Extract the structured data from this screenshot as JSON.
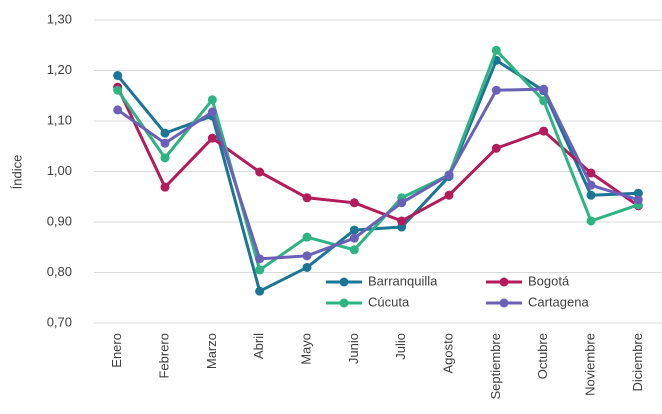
{
  "chart_data": {
    "type": "line",
    "y_label": "Índice",
    "categories": [
      "Enero",
      "Febrero",
      "Marzo",
      "Abril",
      "Mayo",
      "Junio",
      "Julio",
      "Agosto",
      "Septiembre",
      "Octubre",
      "Noviembre",
      "Diciembre"
    ],
    "series": [
      {
        "name": "Barranquilla",
        "color": "#1b7595",
        "values": [
          1.19,
          1.076,
          1.11,
          0.763,
          0.81,
          0.884,
          0.89,
          0.99,
          1.22,
          1.16,
          0.953,
          0.957
        ]
      },
      {
        "name": "Bogotá",
        "color": "#b31b5b",
        "values": [
          1.167,
          0.969,
          1.066,
          0.999,
          0.948,
          0.938,
          0.902,
          0.953,
          1.046,
          1.08,
          0.997,
          0.932
        ]
      },
      {
        "name": "Cúcuta",
        "color": "#2eb383",
        "values": [
          1.161,
          1.027,
          1.142,
          0.805,
          0.87,
          0.845,
          0.948,
          0.993,
          1.24,
          1.14,
          0.902,
          0.934
        ]
      },
      {
        "name": "Cartagena",
        "color": "#6a60b8",
        "values": [
          1.122,
          1.056,
          1.118,
          0.827,
          0.833,
          0.868,
          0.938,
          0.993,
          1.161,
          1.163,
          0.973,
          0.944
        ]
      }
    ],
    "ylim": [
      0.7,
      1.3
    ],
    "yticks": [
      {
        "value": 0.7,
        "label": "0,70"
      },
      {
        "value": 0.8,
        "label": "0,80"
      },
      {
        "value": 0.9,
        "label": "0,90"
      },
      {
        "value": 1.0,
        "label": "1,00"
      },
      {
        "value": 1.1,
        "label": "1,10"
      },
      {
        "value": 1.2,
        "label": "1,20"
      },
      {
        "value": 1.3,
        "label": "1,30"
      }
    ],
    "grid": true,
    "legend": "lower-right"
  }
}
